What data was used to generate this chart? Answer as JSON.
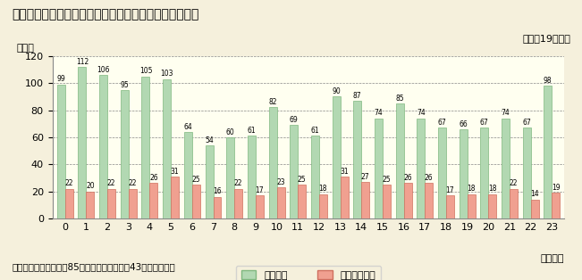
{
  "title": "第１－１－５図　時間帯別の火災による死者の発生状況",
  "subtitle": "（平成19年中）",
  "ylabel": "（人）",
  "xlabel": "（時間）",
  "note": "（注）死亡時刻不明者85人（うち放火自殺者43人）を除く。",
  "legend1": "死者総数",
  "legend2": "放火自殺者数",
  "hours": [
    0,
    1,
    2,
    3,
    4,
    5,
    6,
    7,
    8,
    9,
    10,
    11,
    12,
    13,
    14,
    15,
    16,
    17,
    18,
    19,
    20,
    21,
    22,
    23
  ],
  "total": [
    99,
    112,
    106,
    95,
    105,
    103,
    64,
    54,
    60,
    61,
    82,
    69,
    61,
    90,
    87,
    74,
    85,
    74,
    67,
    66,
    67,
    74,
    67,
    98
  ],
  "arson": [
    22,
    20,
    22,
    22,
    26,
    31,
    25,
    16,
    22,
    17,
    23,
    25,
    18,
    31,
    27,
    25,
    26,
    26,
    17,
    18,
    18,
    22,
    14,
    19
  ],
  "bar_color_total": "#b2d8b2",
  "bar_color_arson": "#f0a090",
  "bar_edge_total": "#80b880",
  "bar_edge_arson": "#d07060",
  "background_color": "#f5f0dc",
  "plot_bg_color": "#fffff0",
  "grid_color": "#888888",
  "ylim": [
    0,
    120
  ],
  "yticks": [
    0,
    20,
    40,
    60,
    80,
    100,
    120
  ],
  "title_fontsize": 10,
  "label_fontsize": 8,
  "tick_fontsize": 8,
  "bar_width": 0.38
}
